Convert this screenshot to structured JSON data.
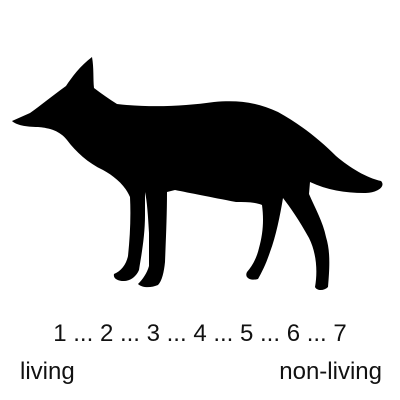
{
  "image": {
    "silhouette_icon": "fox-silhouette-icon",
    "silhouette_color": "#000000",
    "background_color": "#ffffff"
  },
  "scale": {
    "numbers_text": "1 ... 2 ... 3 ... 4 ... 5 ... 6 ... 7",
    "left_label": "living",
    "right_label": "non-living"
  }
}
